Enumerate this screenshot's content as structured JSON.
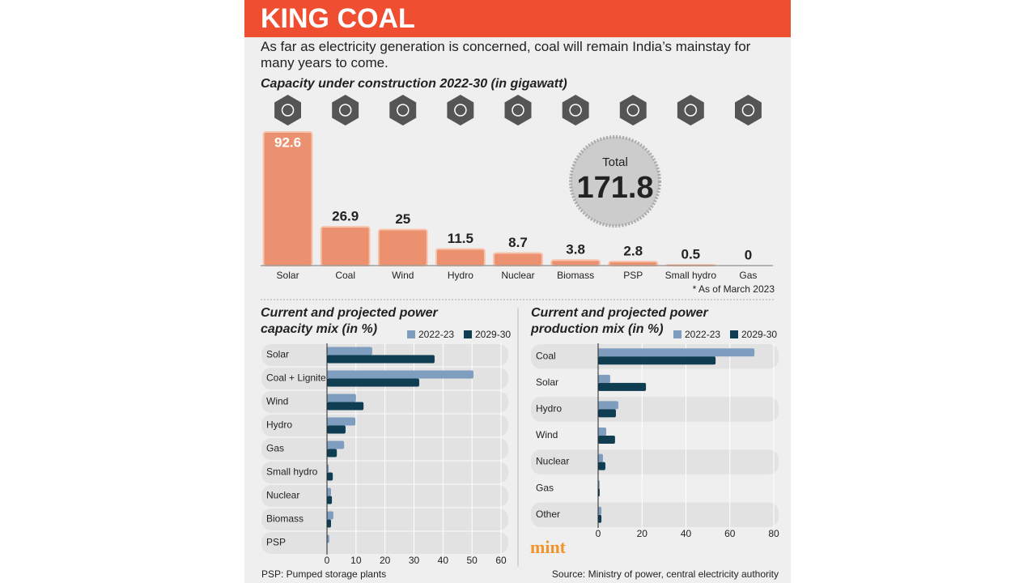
{
  "header": {
    "title": "KING COAL",
    "intro": "As far as electricity generation is concerned, coal will remain India’s mainstay for many years to come."
  },
  "chart_data": [
    {
      "type": "bar",
      "title": "Capacity under construction 2022-30 (in gigawatt)",
      "categories": [
        "Solar",
        "Coal",
        "Wind",
        "Hydro",
        "Nuclear",
        "Biomass",
        "PSP",
        "Small hydro",
        "Gas"
      ],
      "values": [
        92.6,
        26.9,
        25,
        11.5,
        8.7,
        3.8,
        2.8,
        0.5,
        0
      ],
      "color": "#ec9170",
      "total_label": "Total",
      "total": 171.8,
      "note": "* As of March 2023"
    },
    {
      "type": "hbar",
      "title": "Current and projected power capacity mix (in %)",
      "categories": [
        "Solar",
        "Coal + Lignite",
        "Wind",
        "Hydro",
        "Gas",
        "Small hydro",
        "Nuclear",
        "Biomass",
        "PSP"
      ],
      "series": [
        {
          "name": "2022-23",
          "color": "#7f9dbf",
          "values": [
            15.6,
            50.5,
            10,
            9.8,
            5.9,
            0.6,
            1.4,
            2.2,
            0.8
          ]
        },
        {
          "name": "2029-30",
          "color": "#0f3d52",
          "values": [
            37.1,
            31.8,
            12.6,
            6.4,
            3.4,
            2,
            1.7,
            1.4,
            0
          ]
        }
      ],
      "xlim": [
        0,
        60
      ],
      "xticks": [
        0,
        10,
        20,
        30,
        40,
        50,
        60
      ],
      "grid": true
    },
    {
      "type": "hbar",
      "title": "Current and projected power production mix (in %)",
      "categories": [
        "Coal",
        "Solar",
        "Hydro",
        "Wind",
        "Nuclear",
        "Gas",
        "Other"
      ],
      "series": [
        {
          "name": "2022-23",
          "color": "#7f9dbf",
          "values": [
            71.2,
            5.5,
            9.2,
            3.7,
            2.2,
            0.7,
            1.5
          ]
        },
        {
          "name": "2029-30",
          "color": "#0f3d52",
          "values": [
            53.5,
            21.8,
            8.1,
            7.7,
            3.3,
            0.7,
            1.5
          ]
        }
      ],
      "xlim": [
        0,
        80
      ],
      "xticks": [
        0,
        20,
        40,
        60,
        80
      ],
      "grid": true
    }
  ],
  "footnote": "PSP: Pumped storage plants",
  "source": "Source: Ministry of power, central electricity authority",
  "logo": "mint"
}
